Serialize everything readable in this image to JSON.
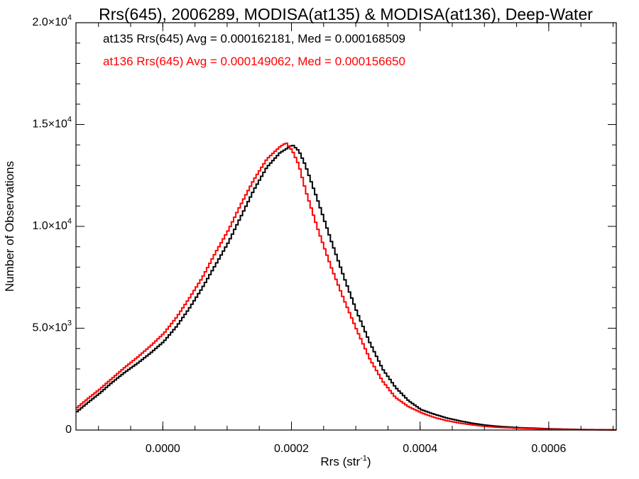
{
  "chart_data": {
    "type": "line",
    "title": "Rrs(645), 2006289, MODISA(at135) & MODISA(at136), Deep-Water",
    "xlabel": "Rrs (str",
    "xlabel_sup": "-1",
    "xlabel_close": ")",
    "ylabel": "Number of Observations",
    "xlim": [
      -0.000135,
      0.000705
    ],
    "ylim": [
      0,
      20000
    ],
    "grid": false,
    "legend_position": "top-left",
    "x_ticks": [
      {
        "value": 0.0,
        "label": "0.0000"
      },
      {
        "value": 0.0002,
        "label": "0.0002"
      },
      {
        "value": 0.0004,
        "label": "0.0004"
      },
      {
        "value": 0.0006,
        "label": "0.0006"
      }
    ],
    "y_ticks": [
      {
        "value": 0,
        "mant": "0",
        "exp": ""
      },
      {
        "value": 5000,
        "mant": "5.0×10",
        "exp": "3"
      },
      {
        "value": 10000,
        "mant": "1.0×10",
        "exp": "4"
      },
      {
        "value": 15000,
        "mant": "1.5×10",
        "exp": "4"
      },
      {
        "value": 20000,
        "mant": "2.0×10",
        "exp": "4"
      }
    ],
    "series": [
      {
        "name": "at135 Rrs(645) Avg = 0.000162181, Med = 0.000168509",
        "color": "#000000",
        "points": [
          [
            -0.000135,
            900
          ],
          [
            -0.00012,
            1300
          ],
          [
            -0.0001,
            1800
          ],
          [
            -8e-05,
            2350
          ],
          [
            -6e-05,
            2850
          ],
          [
            -4e-05,
            3300
          ],
          [
            -2e-05,
            3800
          ],
          [
            0.0,
            4350
          ],
          [
            2e-05,
            5100
          ],
          [
            4e-05,
            6000
          ],
          [
            6e-05,
            7000
          ],
          [
            8e-05,
            8100
          ],
          [
            0.0001,
            9200
          ],
          [
            0.00012,
            10500
          ],
          [
            0.00014,
            11800
          ],
          [
            0.00016,
            12900
          ],
          [
            0.00018,
            13600
          ],
          [
            0.0002,
            14000
          ],
          [
            0.00021,
            13700
          ],
          [
            0.00022,
            13000
          ],
          [
            0.00024,
            11200
          ],
          [
            0.00026,
            9300
          ],
          [
            0.00028,
            7500
          ],
          [
            0.0003,
            5800
          ],
          [
            0.00032,
            4300
          ],
          [
            0.00034,
            3000
          ],
          [
            0.00036,
            2100
          ],
          [
            0.00038,
            1450
          ],
          [
            0.0004,
            1000
          ],
          [
            0.00042,
            780
          ],
          [
            0.00044,
            590
          ],
          [
            0.00046,
            450
          ],
          [
            0.00048,
            330
          ],
          [
            0.0005,
            240
          ],
          [
            0.00052,
            180
          ],
          [
            0.00055,
            120
          ],
          [
            0.0006,
            60
          ],
          [
            0.00065,
            25
          ],
          [
            0.0007,
            10
          ]
        ]
      },
      {
        "name": "at136 Rrs(645) Avg = 0.000149062, Med = 0.000156650",
        "color": "#ff0000",
        "points": [
          [
            -0.000135,
            1100
          ],
          [
            -0.00012,
            1500
          ],
          [
            -0.0001,
            2000
          ],
          [
            -8e-05,
            2550
          ],
          [
            -6e-05,
            3100
          ],
          [
            -4e-05,
            3600
          ],
          [
            -2e-05,
            4150
          ],
          [
            0.0,
            4750
          ],
          [
            2e-05,
            5550
          ],
          [
            4e-05,
            6500
          ],
          [
            6e-05,
            7500
          ],
          [
            8e-05,
            8700
          ],
          [
            0.0001,
            9800
          ],
          [
            0.00012,
            11100
          ],
          [
            0.00014,
            12300
          ],
          [
            0.00016,
            13300
          ],
          [
            0.00018,
            13900
          ],
          [
            0.00019,
            14100
          ],
          [
            0.0002,
            13700
          ],
          [
            0.00021,
            13000
          ],
          [
            0.00022,
            11800
          ],
          [
            0.00024,
            9800
          ],
          [
            0.00026,
            8000
          ],
          [
            0.00028,
            6400
          ],
          [
            0.0003,
            4900
          ],
          [
            0.00032,
            3500
          ],
          [
            0.00034,
            2400
          ],
          [
            0.00036,
            1600
          ],
          [
            0.00038,
            1150
          ],
          [
            0.0004,
            850
          ],
          [
            0.00042,
            620
          ],
          [
            0.00044,
            460
          ],
          [
            0.00046,
            340
          ],
          [
            0.00048,
            250
          ],
          [
            0.0005,
            180
          ],
          [
            0.00052,
            130
          ],
          [
            0.00055,
            90
          ],
          [
            0.0006,
            40
          ],
          [
            0.00065,
            15
          ],
          [
            0.0007,
            5
          ]
        ]
      }
    ]
  }
}
